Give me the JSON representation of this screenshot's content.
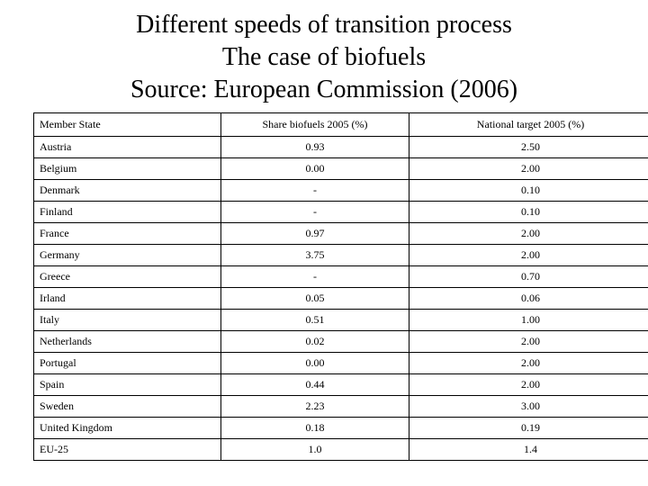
{
  "title": {
    "line1": "Different speeds of transition process",
    "line2": "The case of biofuels",
    "line3": "Source: European Commission (2006)"
  },
  "table": {
    "headers": [
      "Member State",
      "Share biofuels 2005 (%)",
      "National target 2005 (%)"
    ],
    "rows": [
      {
        "state": "Austria",
        "share": "0.93",
        "target": "2.50",
        "bold": false
      },
      {
        "state": "Belgium",
        "share": "0.00",
        "target": "2.00",
        "bold": false
      },
      {
        "state": "Denmark",
        "share": "-",
        "target": "0.10",
        "bold": false
      },
      {
        "state": "Finland",
        "share": "-",
        "target": "0.10",
        "bold": false
      },
      {
        "state": "France",
        "share": "0.97",
        "target": "2.00",
        "bold": false
      },
      {
        "state": "Germany",
        "share": "3.75",
        "target": "2.00",
        "bold": true
      },
      {
        "state": "Greece",
        "share": "-",
        "target": "0.70",
        "bold": false
      },
      {
        "state": "Irland",
        "share": "0.05",
        "target": "0.06",
        "bold": false
      },
      {
        "state": "Italy",
        "share": "0.51",
        "target": "1.00",
        "bold": true
      },
      {
        "state": "Netherlands",
        "share": "0.02",
        "target": "2.00",
        "bold": false
      },
      {
        "state": "Portugal",
        "share": "0.00",
        "target": "2.00",
        "bold": false
      },
      {
        "state": "Spain",
        "share": "0.44",
        "target": "2.00",
        "bold": false
      },
      {
        "state": "Sweden",
        "share": "2.23",
        "target": "3.00",
        "bold": true
      },
      {
        "state": "United Kingdom",
        "share": "0.18",
        "target": "0.19",
        "bold": false
      },
      {
        "state": "EU-25",
        "share": "1.0",
        "target": "1.4",
        "bold": false
      }
    ]
  }
}
